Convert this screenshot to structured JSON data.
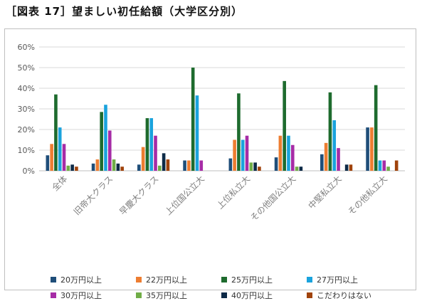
{
  "title": "［図表 17］望ましい初任給額（大学区分別）",
  "chart_data": {
    "type": "bar",
    "title": "",
    "xlabel": "",
    "ylabel": "",
    "ylim": [
      0,
      60
    ],
    "yticks": [
      "0%",
      "10%",
      "20%",
      "30%",
      "40%",
      "50%",
      "60%"
    ],
    "grid": true,
    "legend_position": "bottom",
    "categories": [
      "全体",
      "旧帝大クラス",
      "早慶大クラス",
      "上位国公立大",
      "上位私立大",
      "その他国公立大",
      "中堅私立大",
      "その他私立大"
    ],
    "series": [
      {
        "name": "20万円以上",
        "color": "#1f4e79",
        "values": [
          7.5,
          3.5,
          3,
          5,
          6,
          6.5,
          8,
          21
        ]
      },
      {
        "name": "22万円以上",
        "color": "#ed7d31",
        "values": [
          13,
          5.5,
          11.5,
          5,
          15,
          17,
          13.5,
          21
        ]
      },
      {
        "name": "25万円以上",
        "color": "#1e6b2e",
        "values": [
          37,
          28.5,
          25.5,
          50,
          37.5,
          43.5,
          38,
          41.5
        ]
      },
      {
        "name": "27万円以上",
        "color": "#1aa3dd",
        "values": [
          21,
          32,
          25.5,
          36.5,
          15,
          17,
          24.5,
          5
        ]
      },
      {
        "name": "30万円以上",
        "color": "#a62ca6",
        "values": [
          13,
          19.5,
          17,
          5,
          17,
          12.5,
          11,
          5
        ]
      },
      {
        "name": "35万円以上",
        "color": "#70ad47",
        "values": [
          2.5,
          5.5,
          2.5,
          0,
          4,
          2,
          0,
          2
        ]
      },
      {
        "name": "40万円以上",
        "color": "#0d2a47",
        "values": [
          3,
          3.5,
          8.5,
          0,
          4,
          2,
          3,
          0
        ]
      },
      {
        "name": "こだわりはない",
        "color": "#a0430b",
        "values": [
          2,
          2,
          5.5,
          0,
          2,
          0,
          3,
          5
        ]
      }
    ]
  }
}
